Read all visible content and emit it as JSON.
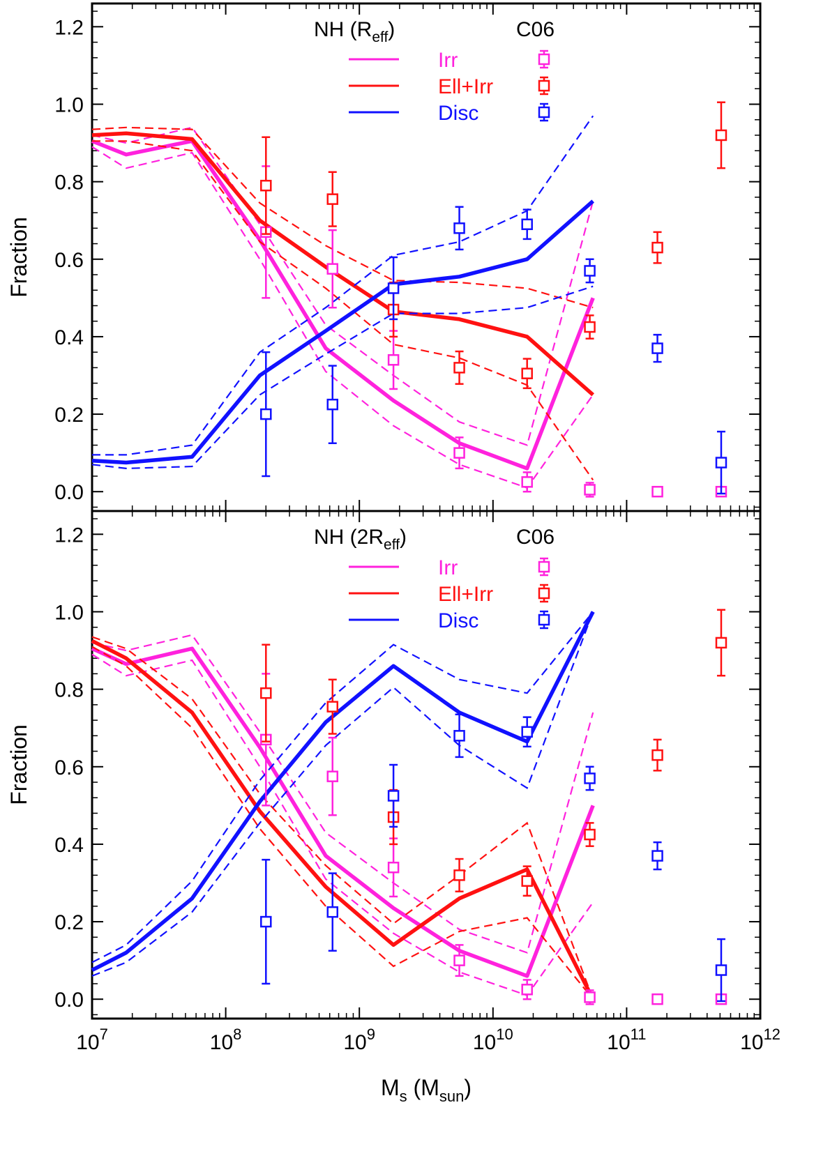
{
  "chart_data": [
    {
      "type": "line",
      "title": "NH (R_eff) vs C06",
      "legend_header_model": "NH (R",
      "legend_header_model_sub": "eff",
      "legend_header_model_close": ")",
      "legend_header_obs": "C06",
      "xlabel_main": "M",
      "xlabel_sub_s": "s",
      "xlabel_mid": " (M",
      "xlabel_sub_sun": "sun",
      "xlabel_close": ")",
      "show_xlabel": false,
      "ylabel": "Fraction",
      "xscale": "log",
      "xlim": [
        10000000,
        1000000000000
      ],
      "ylim": [
        -0.05,
        1.26
      ],
      "yticks": [
        0.0,
        0.2,
        0.4,
        0.6,
        0.8,
        1.0,
        1.2
      ],
      "ytick_labels": [
        "0.0",
        "0.2",
        "0.4",
        "0.6",
        "0.8",
        "1.0",
        "1.2"
      ],
      "xtick_decades": [
        "7",
        "8",
        "9",
        "10",
        "11",
        "12"
      ],
      "legend_position": "top-center",
      "x": [
        10000000,
        18000000,
        56000000,
        180000000,
        560000000,
        1800000000,
        5600000000,
        18000000000,
        56000000000
      ],
      "series": [
        {
          "name": "Irr",
          "color": "#ff22dd",
          "values": [
            0.905,
            0.87,
            0.905,
            0.65,
            0.37,
            0.235,
            0.125,
            0.06,
            0.5
          ],
          "upper": [
            0.92,
            0.9,
            0.94,
            0.69,
            0.43,
            0.3,
            0.18,
            0.12,
            0.75
          ],
          "lower": [
            0.89,
            0.835,
            0.875,
            0.6,
            0.31,
            0.17,
            0.07,
            0.01,
            0.25
          ]
        },
        {
          "name": "Ell+Irr",
          "color": "#ff1111",
          "values": [
            0.92,
            0.925,
            0.91,
            0.7,
            0.58,
            0.465,
            0.445,
            0.4,
            0.25
          ],
          "upper": [
            0.935,
            0.94,
            0.935,
            0.745,
            0.635,
            0.545,
            0.54,
            0.525,
            0.475
          ],
          "lower": [
            0.905,
            0.905,
            0.88,
            0.645,
            0.525,
            0.38,
            0.345,
            0.275,
            0.03
          ]
        },
        {
          "name": "Disc",
          "color": "#1111ff",
          "values": [
            0.08,
            0.075,
            0.09,
            0.3,
            0.415,
            0.535,
            0.555,
            0.6,
            0.75
          ],
          "upper": [
            0.095,
            0.095,
            0.12,
            0.36,
            0.475,
            0.61,
            0.645,
            0.725,
            0.97
          ],
          "lower": [
            0.07,
            0.06,
            0.065,
            0.25,
            0.355,
            0.46,
            0.46,
            0.475,
            0.53
          ]
        }
      ],
      "observations": [
        {
          "name": "Irr",
          "color": "#ff22dd",
          "x": [
            200000000,
            630000000,
            1800000000,
            5600000000,
            18000000000,
            53000000000,
            170000000000,
            510000000000
          ],
          "y": [
            0.67,
            0.575,
            0.34,
            0.1,
            0.025,
            0.005,
            0.0,
            0.0
          ],
          "yerr": [
            0.17,
            0.1,
            0.075,
            0.04,
            0.025,
            0.018,
            0.004,
            0.004
          ]
        },
        {
          "name": "Ell+Irr",
          "color": "#ff1111",
          "x": [
            200000000,
            630000000,
            1800000000,
            5600000000,
            18000000000,
            53000000000,
            170000000000,
            510000000000
          ],
          "y": [
            0.79,
            0.755,
            0.47,
            0.32,
            0.305,
            0.425,
            0.63,
            0.92
          ],
          "yerr": [
            0.125,
            0.07,
            0.07,
            0.042,
            0.038,
            0.03,
            0.04,
            0.085
          ]
        },
        {
          "name": "Disc",
          "color": "#1111ff",
          "x": [
            200000000,
            630000000,
            1800000000,
            5600000000,
            18000000000,
            53000000000,
            170000000000,
            510000000000
          ],
          "y": [
            0.2,
            0.225,
            0.525,
            0.68,
            0.69,
            0.57,
            0.37,
            0.075
          ],
          "yerr": [
            0.16,
            0.1,
            0.08,
            0.055,
            0.038,
            0.03,
            0.035,
            0.08
          ]
        }
      ]
    },
    {
      "type": "line",
      "title": "NH (2R_eff) vs C06",
      "legend_header_model": "NH (2R",
      "legend_header_model_sub": "eff",
      "legend_header_model_close": ")",
      "legend_header_obs": "C06",
      "xlabel_main": "M",
      "xlabel_sub_s": "s",
      "xlabel_mid": " (M",
      "xlabel_sub_sun": "sun",
      "xlabel_close": ")",
      "show_xlabel": true,
      "ylabel": "Fraction",
      "xscale": "log",
      "xlim": [
        10000000,
        1000000000000
      ],
      "ylim": [
        -0.05,
        1.26
      ],
      "yticks": [
        0.0,
        0.2,
        0.4,
        0.6,
        0.8,
        1.0,
        1.2
      ],
      "ytick_labels": [
        "0.0",
        "0.2",
        "0.4",
        "0.6",
        "0.8",
        "1.0",
        "1.2"
      ],
      "xtick_decades": [
        "7",
        "8",
        "9",
        "10",
        "11",
        "12"
      ],
      "legend_position": "top-center",
      "x": [
        10000000,
        18000000,
        56000000,
        180000000,
        560000000,
        1800000000,
        5600000000,
        18000000000,
        56000000000
      ],
      "series": [
        {
          "name": "Irr",
          "color": "#ff22dd",
          "values": [
            0.905,
            0.865,
            0.905,
            0.65,
            0.37,
            0.235,
            0.125,
            0.06,
            0.5
          ],
          "upper": [
            0.92,
            0.9,
            0.94,
            0.69,
            0.43,
            0.3,
            0.18,
            0.12,
            0.74
          ],
          "lower": [
            0.89,
            0.835,
            0.875,
            0.6,
            0.31,
            0.17,
            0.07,
            0.01,
            0.25
          ]
        },
        {
          "name": "Ell+Irr",
          "color": "#ff1111",
          "values": [
            0.925,
            0.88,
            0.74,
            0.485,
            0.29,
            0.14,
            0.26,
            0.335,
            0.0
          ],
          "upper": [
            0.935,
            0.905,
            0.775,
            0.53,
            0.345,
            0.195,
            0.32,
            0.455,
            0.0
          ],
          "lower": [
            0.91,
            0.86,
            0.7,
            0.44,
            0.24,
            0.085,
            0.175,
            0.21,
            0.0
          ]
        },
        {
          "name": "Disc",
          "color": "#1111ff",
          "values": [
            0.075,
            0.12,
            0.26,
            0.51,
            0.715,
            0.86,
            0.74,
            0.665,
            1.0
          ],
          "upper": [
            0.095,
            0.14,
            0.305,
            0.565,
            0.765,
            0.915,
            0.825,
            0.79,
            1.0
          ],
          "lower": [
            0.06,
            0.095,
            0.225,
            0.455,
            0.655,
            0.805,
            0.655,
            0.545,
            1.0
          ]
        }
      ],
      "observations": [
        {
          "name": "Irr",
          "color": "#ff22dd",
          "x": [
            200000000,
            630000000,
            1800000000,
            5600000000,
            18000000000,
            53000000000,
            170000000000,
            510000000000
          ],
          "y": [
            0.67,
            0.575,
            0.34,
            0.1,
            0.025,
            0.005,
            0.0,
            0.0
          ],
          "yerr": [
            0.17,
            0.1,
            0.075,
            0.04,
            0.025,
            0.018,
            0.004,
            0.004
          ]
        },
        {
          "name": "Ell+Irr",
          "color": "#ff1111",
          "x": [
            200000000,
            630000000,
            1800000000,
            5600000000,
            18000000000,
            53000000000,
            170000000000,
            510000000000
          ],
          "y": [
            0.79,
            0.755,
            0.47,
            0.32,
            0.305,
            0.425,
            0.63,
            0.92
          ],
          "yerr": [
            0.125,
            0.07,
            0.07,
            0.042,
            0.038,
            0.03,
            0.04,
            0.085
          ]
        },
        {
          "name": "Disc",
          "color": "#1111ff",
          "x": [
            200000000,
            630000000,
            1800000000,
            5600000000,
            18000000000,
            53000000000,
            170000000000,
            510000000000
          ],
          "y": [
            0.2,
            0.225,
            0.525,
            0.68,
            0.69,
            0.57,
            0.37,
            0.075
          ],
          "yerr": [
            0.16,
            0.1,
            0.08,
            0.055,
            0.038,
            0.03,
            0.035,
            0.08
          ]
        }
      ]
    }
  ]
}
